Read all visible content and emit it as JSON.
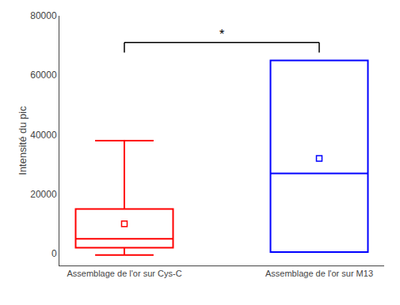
{
  "chart_data": {
    "type": "box",
    "categories": [
      "Assemblage de l'or sur Cys-C",
      "Assemblage de l'or sur M13"
    ],
    "whisker_low": [
      -500,
      500
    ],
    "q1": [
      2000,
      500
    ],
    "median": [
      5000,
      27000
    ],
    "q3": [
      15000,
      65000
    ],
    "whisker_high": [
      38000,
      65000
    ],
    "mean": [
      10000,
      32000
    ],
    "colors": [
      "red",
      "blue"
    ],
    "marker": "square",
    "ylabel": "Intensité du pic",
    "ylim": [
      -4000,
      80000
    ],
    "yticks": [
      0,
      20000,
      40000,
      60000,
      80000
    ],
    "annotations": [
      {
        "text": "*",
        "x": [
          0,
          1
        ],
        "y": 71000
      }
    ],
    "grid": false
  }
}
